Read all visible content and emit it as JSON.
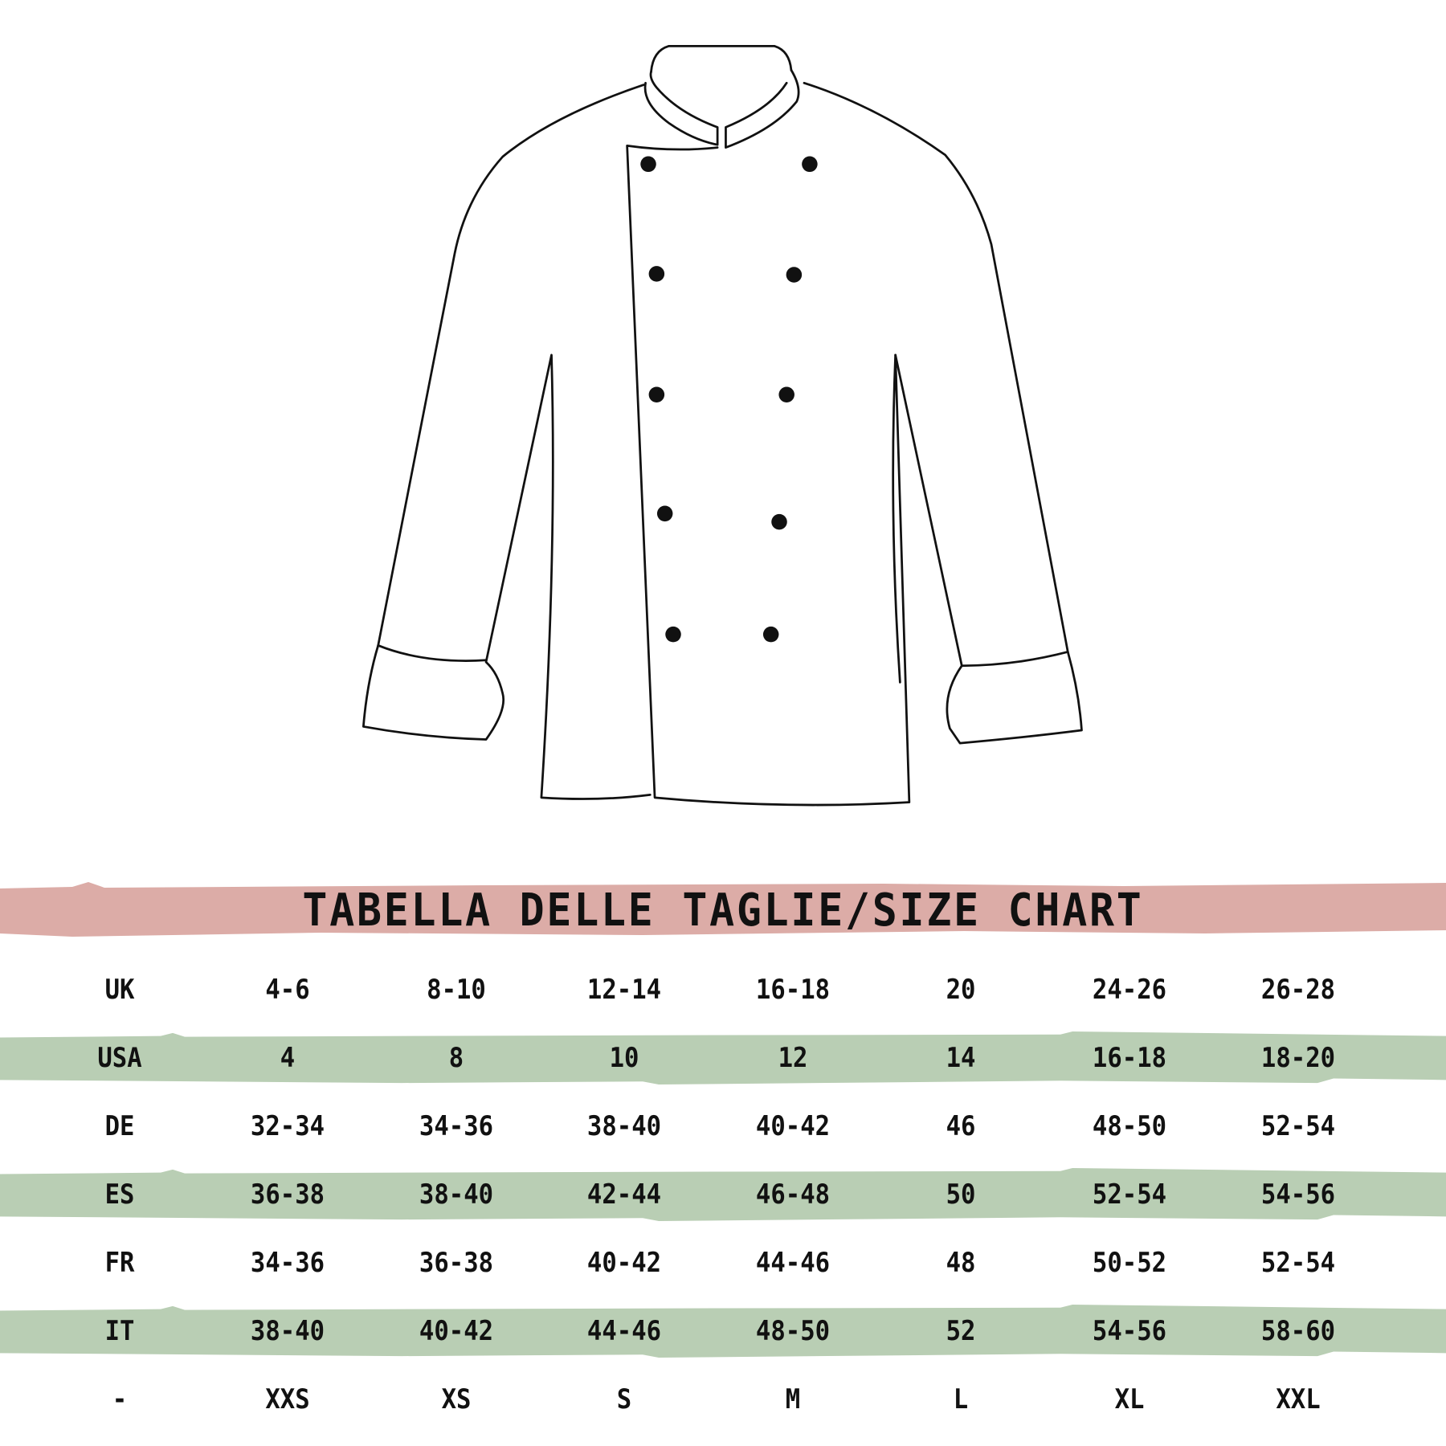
{
  "title": "TABELLA DELLE TAGLIE/SIZE CHART",
  "colors": {
    "title_band": "#dcaca7",
    "row_band": "#b9ceb4",
    "ink": "#111111"
  },
  "illustration": "chef-jacket-outline",
  "rows": [
    {
      "label": "UK",
      "values": [
        "4-6",
        "8-10",
        "12-14",
        "16-18",
        "20",
        "24-26",
        "26-28"
      ],
      "band": false
    },
    {
      "label": "USA",
      "values": [
        "4",
        "8",
        "10",
        "12",
        "14",
        "16-18",
        "18-20"
      ],
      "band": true
    },
    {
      "label": "DE",
      "values": [
        "32-34",
        "34-36",
        "38-40",
        "40-42",
        "46",
        "48-50",
        "52-54"
      ],
      "band": false
    },
    {
      "label": "ES",
      "values": [
        "36-38",
        "38-40",
        "42-44",
        "46-48",
        "50",
        "52-54",
        "54-56"
      ],
      "band": true
    },
    {
      "label": "FR",
      "values": [
        "34-36",
        "36-38",
        "40-42",
        "44-46",
        "48",
        "50-52",
        "52-54"
      ],
      "band": false
    },
    {
      "label": "IT",
      "values": [
        "38-40",
        "40-42",
        "44-46",
        "48-50",
        "52",
        "54-56",
        "58-60"
      ],
      "band": true
    },
    {
      "label": "-",
      "values": [
        "XXS",
        "XS",
        "S",
        "M",
        "L",
        "XL",
        "XXL"
      ],
      "band": false
    }
  ]
}
